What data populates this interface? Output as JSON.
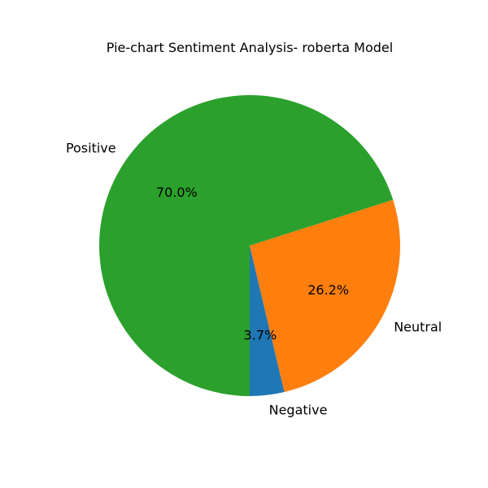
{
  "chart_data": {
    "type": "pie",
    "title": "Pie-chart Sentiment Analysis- roberta Model",
    "slices": [
      {
        "label": "Negative",
        "value": 3.7,
        "pct_label": "3.7%",
        "color": "#1f77b4"
      },
      {
        "label": "Neutral",
        "value": 26.2,
        "pct_label": "26.2%",
        "color": "#ff7f0e"
      },
      {
        "label": "Positive",
        "value": 70.0,
        "pct_label": "70.0%",
        "color": "#2ca02c"
      }
    ],
    "start_angle_deg": 270,
    "direction": "counterclockwise"
  }
}
